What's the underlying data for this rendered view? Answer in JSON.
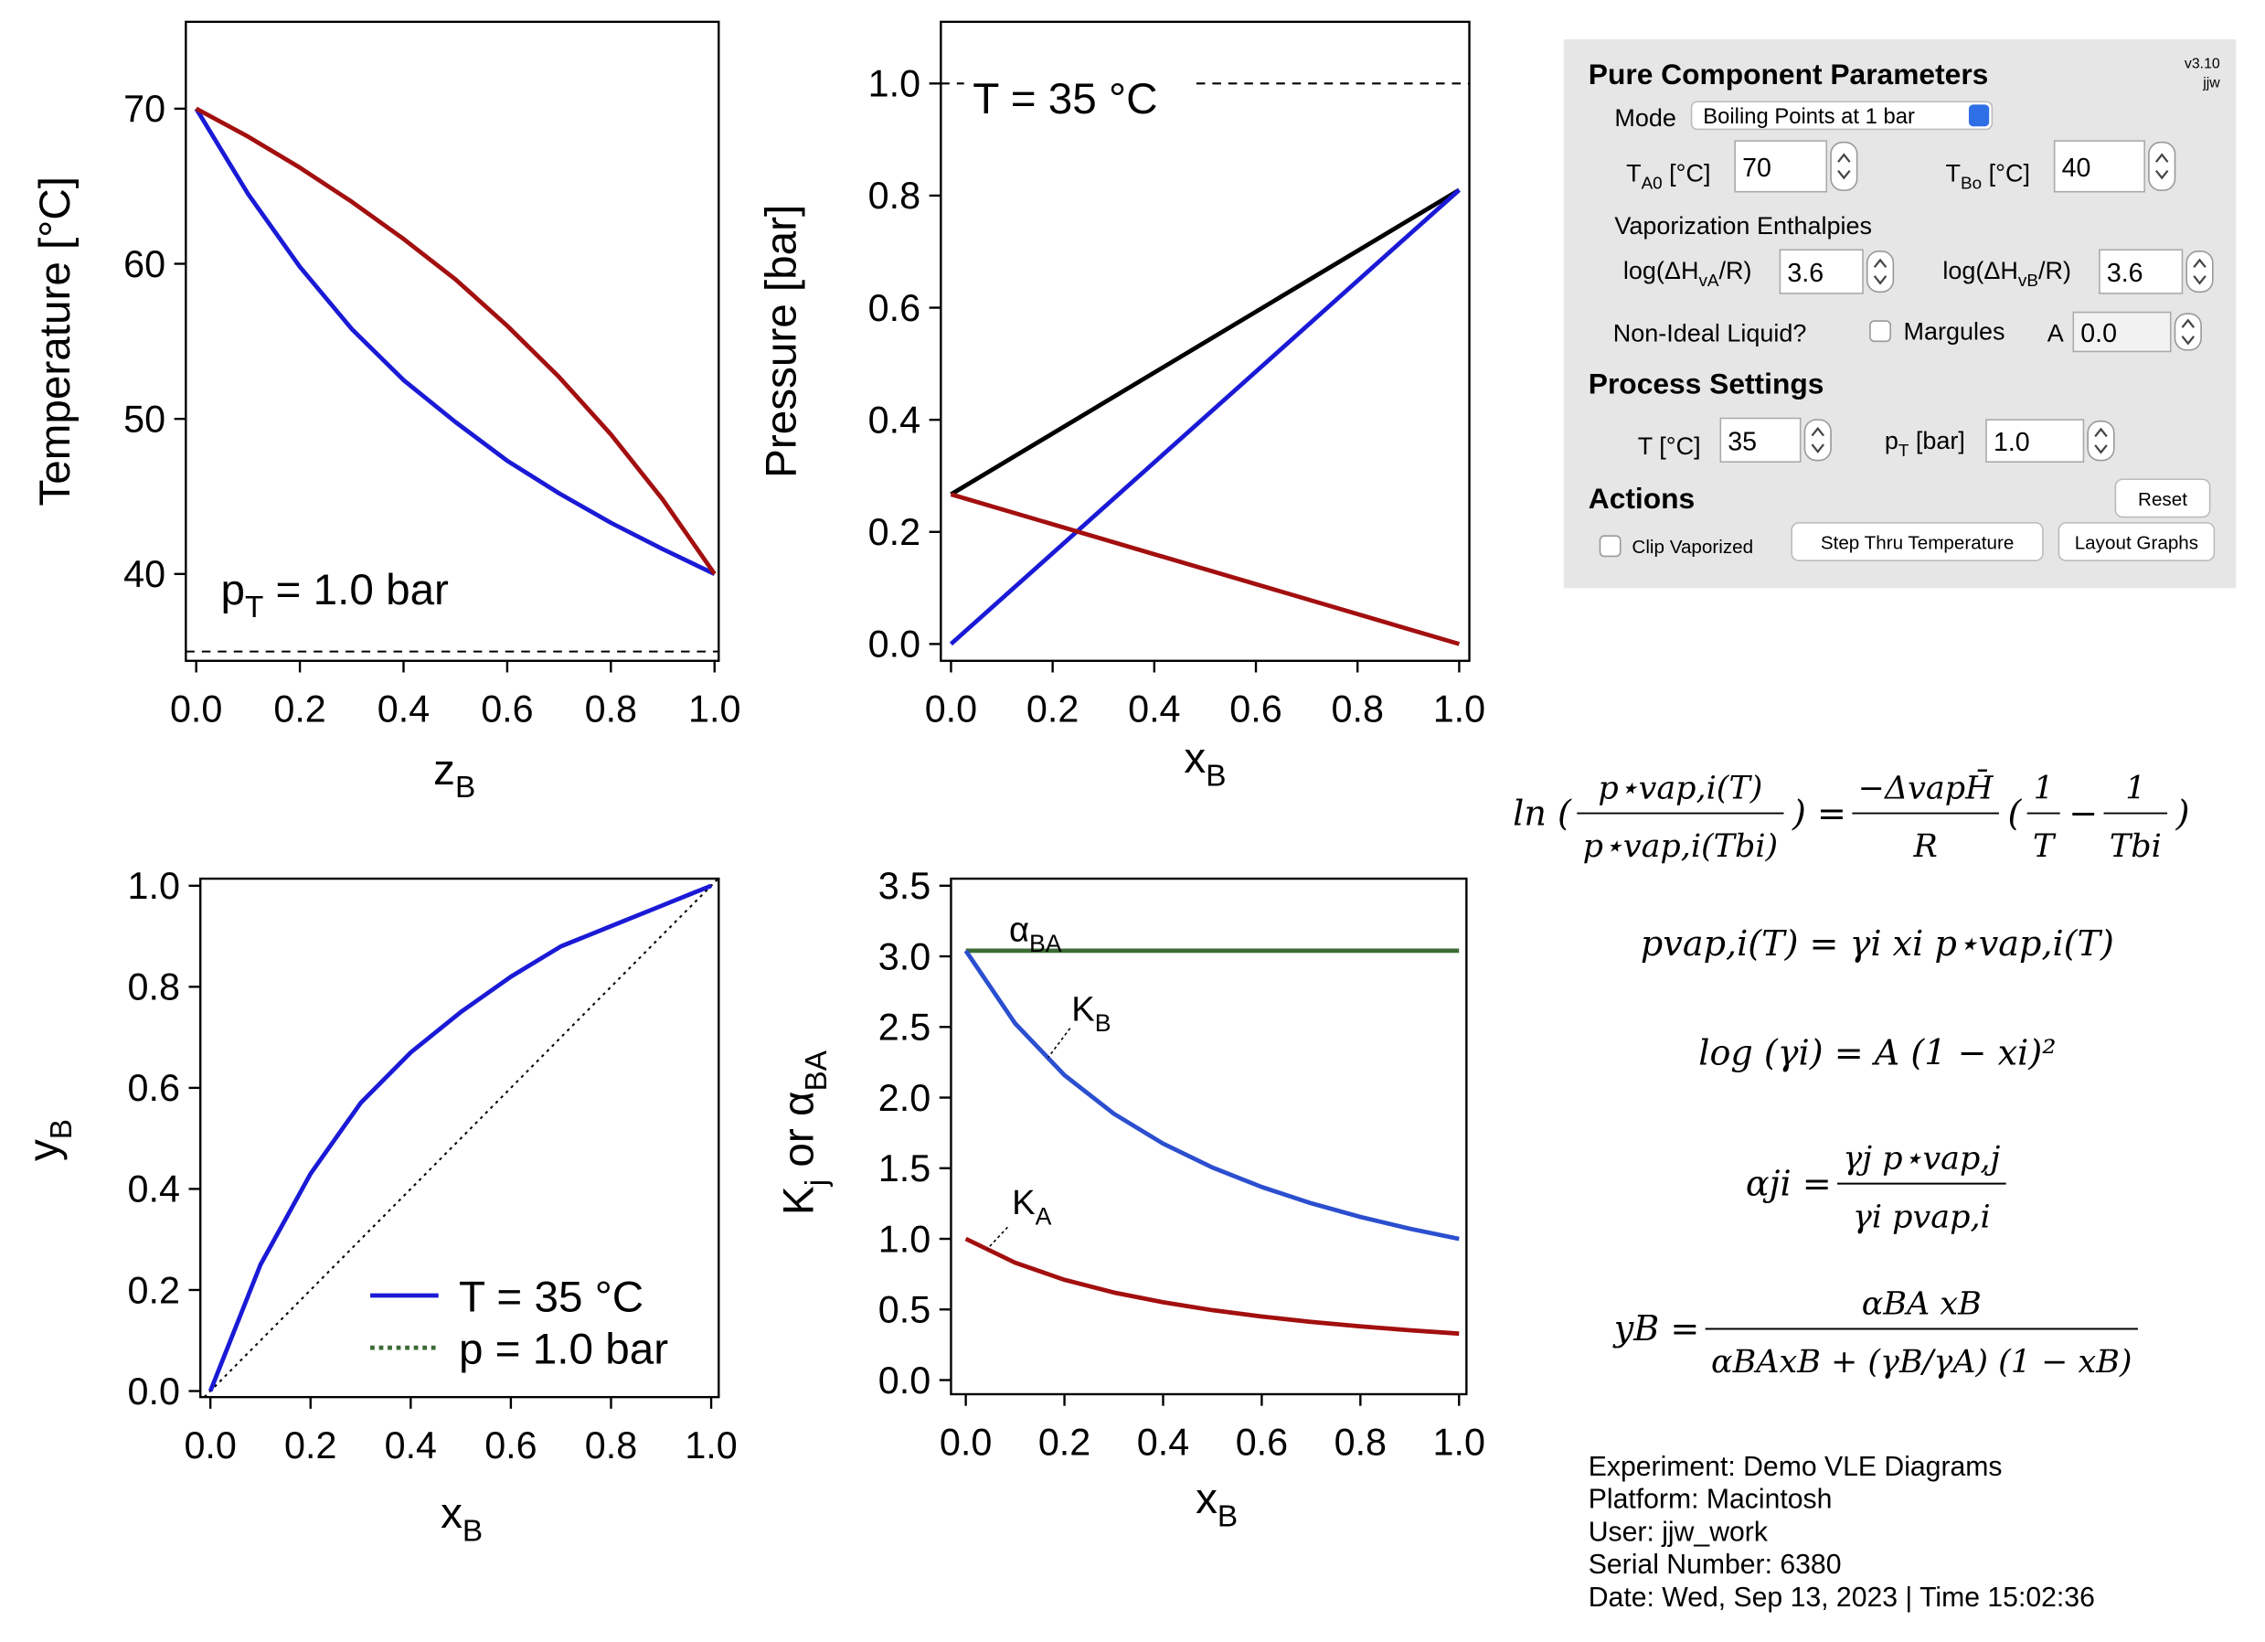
{
  "chart_data": [
    {
      "type": "line",
      "xlabel": [
        {
          "t": "z"
        },
        {
          "sub": "B"
        }
      ],
      "ylabel": "Temperature [°C]",
      "x": [
        0,
        0.1,
        0.2,
        0.3,
        0.4,
        0.5,
        0.6,
        0.7,
        0.8,
        0.9,
        1
      ],
      "series": [
        {
          "color": "#1a1ad6",
          "values": [
            70,
            64.5,
            59.8,
            55.8,
            52.5,
            49.8,
            47.3,
            45.2,
            43.3,
            41.6,
            40
          ]
        },
        {
          "color": "#a30f0f",
          "values": [
            70,
            68.2,
            66.2,
            64.0,
            61.6,
            59.0,
            56.0,
            52.7,
            49.0,
            44.8,
            40
          ]
        }
      ],
      "xlim": [
        -0.02,
        1.008
      ],
      "ylim": [
        34.4,
        75.6
      ],
      "xticks": [
        {
          "value": 0,
          "label": "0.0"
        },
        0.2,
        0.4,
        0.6,
        0.8,
        {
          "value": 1,
          "label": "1.0"
        }
      ],
      "yticks": [
        40,
        50,
        60,
        70
      ],
      "hline": 35,
      "annotations": [
        [
          {
            "t": "p"
          },
          {
            "sub": "T"
          },
          {
            "t": " = 1.0 bar"
          }
        ]
      ]
    },
    {
      "type": "line",
      "xlabel": [
        {
          "t": "x"
        },
        {
          "sub": "B"
        }
      ],
      "ylabel": "Pressure [bar]",
      "x": [
        0,
        1
      ],
      "series": [
        {
          "color": "#000000",
          "values": [
            0.267,
            0.81
          ]
        },
        {
          "color": "#1a1ad6",
          "values": [
            0,
            0.81
          ]
        },
        {
          "color": "#a30f0f",
          "values": [
            0.267,
            0
          ]
        }
      ],
      "xlim": [
        -0.02,
        1.02
      ],
      "ylim": [
        -0.03,
        1.11
      ],
      "xticks": [
        {
          "value": 0,
          "label": "0.0"
        },
        0.2,
        0.4,
        0.6,
        0.8,
        {
          "value": 1,
          "label": "1.0"
        }
      ],
      "yticks": [
        {
          "value": 0,
          "label": "0.0"
        },
        0.2,
        0.4,
        0.6,
        0.8,
        {
          "value": 1,
          "label": "1.0"
        }
      ],
      "hline": 1.0,
      "annotations": [
        "T =  35 °C"
      ]
    },
    {
      "type": "line",
      "xlabel": [
        {
          "t": "x"
        },
        {
          "sub": "B"
        }
      ],
      "ylabel": [
        {
          "t": "y"
        },
        {
          "sub": "B"
        }
      ],
      "x": [
        0,
        0.1,
        0.2,
        0.3,
        0.4,
        0.5,
        0.6,
        0.7,
        0.8,
        0.9,
        1
      ],
      "series": [
        {
          "name": "T =  35 °C",
          "color": "#1a1ad6",
          "dash": "solid",
          "values": [
            0,
            0.25,
            0.43,
            0.57,
            0.67,
            0.75,
            0.82,
            0.88,
            0.92,
            0.96,
            1
          ]
        },
        {
          "name": "p = 1.0 bar",
          "color": "#3a6b35",
          "dash": "dotted",
          "values": [
            null,
            null,
            null,
            null,
            null,
            null,
            null,
            null,
            null,
            null,
            null
          ]
        }
      ],
      "xlim": [
        -0.02,
        1.015
      ],
      "ylim": [
        -0.012,
        1.014
      ],
      "xticks": [
        {
          "value": 0,
          "label": "0.0"
        },
        0.2,
        0.4,
        0.6,
        0.8,
        {
          "value": 1,
          "label": "1.0"
        }
      ],
      "yticks": [
        {
          "value": 0,
          "label": "0.0"
        },
        0.2,
        0.4,
        0.6,
        0.8,
        {
          "value": 1,
          "label": "1.0"
        }
      ],
      "diagonal": true,
      "legend": "lower right"
    },
    {
      "type": "line",
      "xlabel": [
        {
          "t": "x"
        },
        {
          "sub": "B"
        }
      ],
      "ylabel": [
        {
          "t": "K"
        },
        {
          "sub": "j"
        },
        {
          "t": " or α"
        },
        {
          "sub": "BA"
        }
      ],
      "x": [
        0,
        0.1,
        0.2,
        0.3,
        0.4,
        0.5,
        0.6,
        0.7,
        0.8,
        0.9,
        1
      ],
      "series": [
        {
          "color": "#3a6b35",
          "values": [
            3.04,
            3.04,
            3.04,
            3.04,
            3.04,
            3.04,
            3.04,
            3.04,
            3.04,
            3.04,
            3.04
          ]
        },
        {
          "color": "#2b4fcf",
          "values": [
            3.04,
            2.525,
            2.159,
            1.886,
            1.674,
            1.505,
            1.367,
            1.252,
            1.155,
            1.072,
            1.0
          ]
        },
        {
          "color": "#a30f0f",
          "values": [
            1.0,
            0.831,
            0.71,
            0.62,
            0.551,
            0.495,
            0.45,
            0.412,
            0.38,
            0.353,
            0.329
          ]
        }
      ],
      "xlim": [
        -0.03,
        1.015
      ],
      "ylim": [
        -0.1,
        3.55
      ],
      "xticks": [
        {
          "value": 0,
          "label": "0.0"
        },
        0.2,
        0.4,
        0.6,
        0.8,
        {
          "value": 1,
          "label": "1.0"
        }
      ],
      "yticks": [
        {
          "value": 0,
          "label": "0.0"
        },
        0.5,
        {
          "value": 1,
          "label": "1.0"
        },
        1.5,
        {
          "value": 2,
          "label": "2.0"
        },
        2.5,
        {
          "value": 3,
          "label": "3.0"
        },
        3.5
      ],
      "annotations": [
        [
          {
            "t": "α"
          },
          {
            "sub": "BA"
          }
        ],
        [
          {
            "t": "K"
          },
          {
            "sub": "B"
          }
        ],
        [
          {
            "t": "K"
          },
          {
            "sub": "A"
          }
        ]
      ]
    }
  ],
  "panel": {
    "version": "v3.10",
    "author": "jjw",
    "title": "Pure Component Parameters",
    "mode_label": "Mode",
    "mode": "Boiling Points at 1 bar",
    "ta0_label": [
      {
        "t": "T"
      },
      {
        "sub": "A0"
      },
      {
        "t": " [°C]"
      }
    ],
    "ta0": "70",
    "tb0_label": [
      {
        "t": "T"
      },
      {
        "sub": "Bo"
      },
      {
        "t": " [°C]"
      }
    ],
    "tb0": "40",
    "enthalpies_title": "Vaporization Enthalpies",
    "hva_label": [
      {
        "t": "log(ΔH"
      },
      {
        "sub": "vA"
      },
      {
        "t": "/R)"
      }
    ],
    "hva": "3.6",
    "hvb_label": [
      {
        "t": "log(ΔH"
      },
      {
        "sub": "vB"
      },
      {
        "t": "/R)"
      }
    ],
    "hvb": "3.6",
    "nonideal_label": "Non-Ideal Liquid?",
    "margules_label": "Margules",
    "a_label": "A",
    "a": "0.0",
    "process_title": "Process Settings",
    "t_label": "T [°C]",
    "t": "35",
    "pt_label": [
      {
        "t": "p"
      },
      {
        "sub": "T"
      },
      {
        "t": " [bar]"
      }
    ],
    "pt": "1.0",
    "actions_title": "Actions",
    "reset": "Reset",
    "clip_label": "Clip Vaporized",
    "step": "Step Thru Temperature",
    "layout": "Layout Graphs"
  },
  "equations": [
    [
      {
        "t": "ln ("
      },
      {
        "num": "p⋆vap,i(T)",
        "den": "p⋆vap,i(Tbi)"
      },
      {
        "t": ") = "
      },
      {
        "num": "−ΔvapH̄",
        "den": "R"
      },
      {
        "t": " ("
      },
      {
        "num": "1",
        "den": "T"
      },
      {
        "t": " − "
      },
      {
        "num": "1",
        "den": "Tbi"
      },
      {
        "t": ")"
      }
    ],
    [
      {
        "t": "pvap,i(T) = γi xi p⋆vap,i(T)"
      }
    ],
    [
      {
        "t": "log (γi) = A (1 − xi)²"
      }
    ],
    [
      {
        "t": "αji = "
      },
      {
        "num": "γj p⋆vap,j",
        "den": "γi pvap,i"
      }
    ],
    [
      {
        "t": "yB = "
      },
      {
        "num": "αBA xB",
        "den": "αBAxB + (γB/γA) (1 − xB)"
      }
    ]
  ],
  "info": [
    "Experiment: Demo VLE Diagrams",
    "Platform: Macintosh",
    "User: jjw_work",
    "Serial Number: 6380",
    "Date: Wed, Sep 13, 2023 | Time 15:02:36"
  ]
}
